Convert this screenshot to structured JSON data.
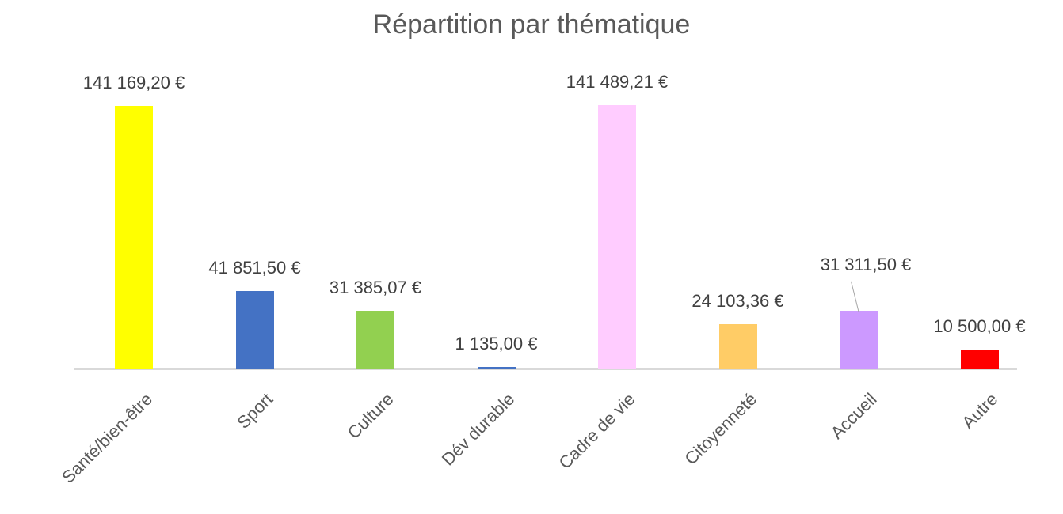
{
  "chart_data": {
    "type": "bar",
    "title": "Répartition par thématique",
    "xlabel": "",
    "ylabel": "",
    "categories": [
      "Santé/bien-être",
      "Sport",
      "Culture",
      "Dév durable",
      "Cadre de vie",
      "Citoyenneté",
      "Accueil",
      "Autre"
    ],
    "values": [
      141169.2,
      41851.5,
      31385.07,
      1135.0,
      141489.21,
      24103.36,
      31311.5,
      10500.0
    ],
    "value_labels": [
      "141 169,20 €",
      "41 851,50 €",
      "31 385,07 €",
      "1 135,00 €",
      "141 489,21 €",
      "24 103,36 €",
      "31 311,50 €",
      "10 500,00 €"
    ],
    "colors": [
      "#ffff00",
      "#4472c4",
      "#92d050",
      "#4472c4",
      "#ffccff",
      "#ffcc66",
      "#cc99ff",
      "#ff0000"
    ],
    "ylim": [
      0,
      142000
    ],
    "grid": false,
    "legend": "none"
  }
}
